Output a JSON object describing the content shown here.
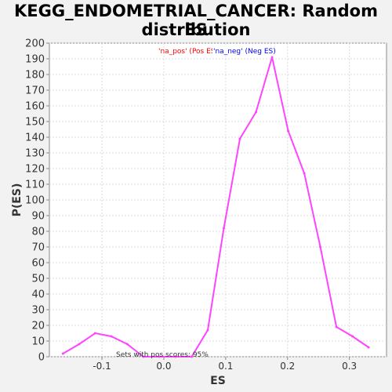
{
  "title_line1": "KEGG_ENDOMETRIAL_CANCER: Random ES",
  "title_line2": "distribution",
  "chart_data": {
    "type": "line",
    "title": "KEGG_ENDOMETRIAL_CANCER: Random ES distribution",
    "xlabel": "ES",
    "ylabel": "P(ES)",
    "xlim": [
      -0.185,
      0.36
    ],
    "ylim": [
      0,
      200
    ],
    "x_ticks": [
      "-0.1",
      "0.0",
      "0.1",
      "0.2",
      "0.3"
    ],
    "x_tick_values": [
      -0.1,
      0.0,
      0.1,
      0.2,
      0.3
    ],
    "y_ticks": [
      0,
      10,
      20,
      30,
      40,
      50,
      60,
      70,
      80,
      90,
      100,
      110,
      120,
      130,
      140,
      150,
      160,
      170,
      180,
      190,
      200
    ],
    "grid": true,
    "legend": [
      {
        "label": "'na_pos' (Pos ES)",
        "color": "#ff0000"
      },
      {
        "label": "'na_neg' (Neg ES)",
        "color": "#0000ff"
      }
    ],
    "annotation": "Sets with pos scores: 95%",
    "series": [
      {
        "color": "#ff44ff",
        "x": [
          -0.163,
          -0.137,
          -0.111,
          -0.085,
          -0.059,
          -0.033,
          -0.007,
          0.019,
          0.045,
          0.071,
          0.097,
          0.123,
          0.149,
          0.175,
          0.201,
          0.227,
          0.253,
          0.279,
          0.305,
          0.331
        ],
        "y": [
          2,
          8,
          15,
          13,
          8,
          0,
          0,
          0,
          0,
          17,
          82,
          139,
          156,
          191,
          144,
          117,
          70,
          19,
          13,
          6
        ]
      }
    ]
  }
}
